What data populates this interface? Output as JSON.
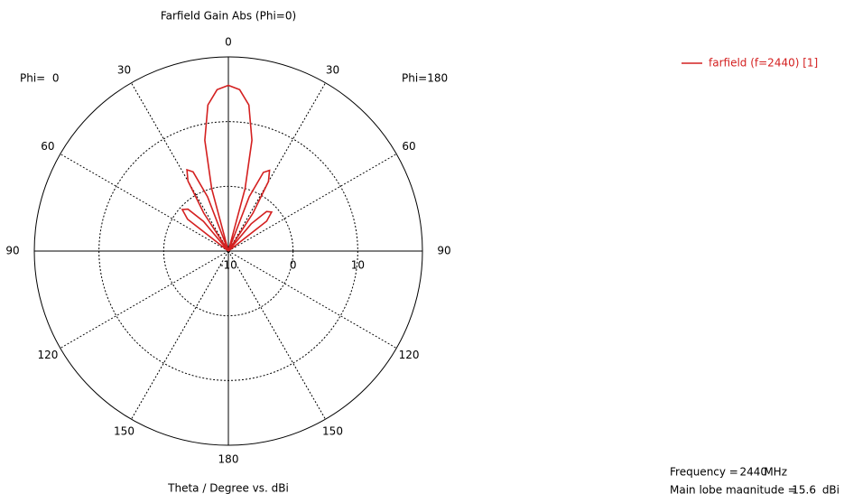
{
  "chart_data": {
    "type": "polar",
    "title": "Farfield Gain Abs (Phi=0)",
    "left_label": "Phi=  0",
    "right_label": "Phi=180",
    "xlabel": "Theta / Degree vs. dBi",
    "theta_ticks": [
      0,
      30,
      60,
      90,
      120,
      150,
      180
    ],
    "rlim": [
      -10,
      20
    ],
    "rticks": [
      -10,
      0,
      10
    ],
    "grid": true,
    "legend": "top-right",
    "series": [
      {
        "name": "farfield (f=2440) [1]",
        "color": "#d42020",
        "x": [
          -90,
          -80,
          -70,
          -60,
          -56,
          -52,
          -48,
          -44,
          -40,
          -36,
          -33,
          -30,
          -27,
          -24,
          -21,
          -18,
          -15,
          -12,
          -8,
          -4,
          0,
          4,
          8,
          12,
          15,
          18,
          21,
          24,
          27,
          30,
          33,
          36,
          40,
          44,
          48,
          52,
          56,
          60,
          70,
          80,
          90
        ],
        "values": [
          -10,
          -10,
          -10,
          -10,
          -10,
          -2,
          -0.4,
          -1,
          -4,
          -10,
          -3,
          2.5,
          4.1,
          3.4,
          -1,
          -10,
          0,
          7.5,
          12.8,
          15,
          15.6,
          15,
          12.8,
          7.5,
          0,
          -10,
          -1,
          3.3,
          4.0,
          2.4,
          -3,
          -10,
          -4.5,
          -1.5,
          -1,
          -2.5,
          -10,
          -10,
          -10,
          -10,
          -10
        ]
      }
    ],
    "info": [
      {
        "label": "Frequency =",
        "value": 2440,
        "unit": "MHz"
      },
      {
        "label": "Main lobe magnitude =",
        "value": 15.6,
        "unit": "dBi"
      }
    ]
  }
}
